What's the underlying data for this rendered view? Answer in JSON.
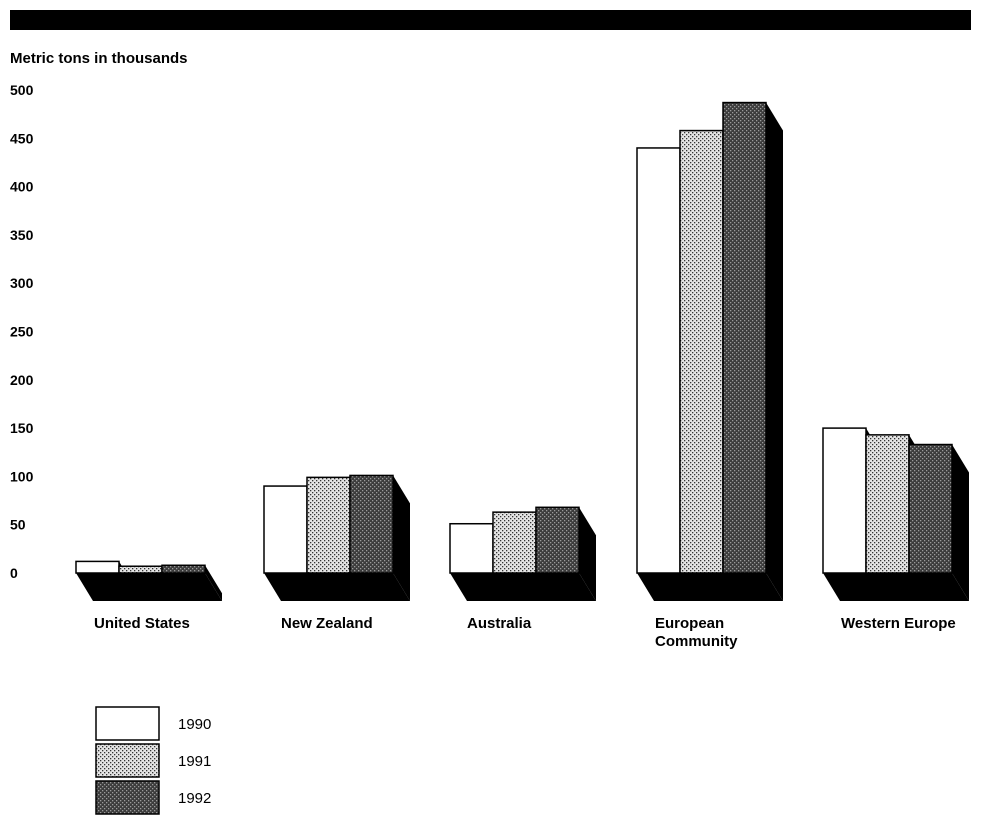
{
  "chart_data": {
    "type": "bar",
    "ylabel": "Metric tons in thousands",
    "ylim": [
      0,
      500
    ],
    "yticks": [
      "500",
      "450",
      "400",
      "350",
      "300",
      "250",
      "200",
      "150",
      "100",
      "50",
      "0"
    ],
    "categories": [
      [
        "United States"
      ],
      [
        "New Zealand"
      ],
      [
        "Australia"
      ],
      [
        "European",
        "Community"
      ],
      [
        "Western Europe"
      ]
    ],
    "series": [
      {
        "name": "1990",
        "values": [
          12,
          90,
          51,
          440,
          150
        ],
        "fill": "white"
      },
      {
        "name": "1991",
        "values": [
          7,
          99,
          63,
          458,
          143
        ],
        "fill": "light-stipple"
      },
      {
        "name": "1992",
        "values": [
          8,
          101,
          68,
          487,
          133
        ],
        "fill": "dark-stipple"
      }
    ],
    "grid": false,
    "legend_position": "bottom-left",
    "style": "3d"
  },
  "colors": {
    "bar_1990": "#ffffff",
    "bar_1991": "#c8c8c8",
    "bar_1992": "#4a4a4a",
    "shadow": "#000000",
    "header_band": "#000000"
  }
}
